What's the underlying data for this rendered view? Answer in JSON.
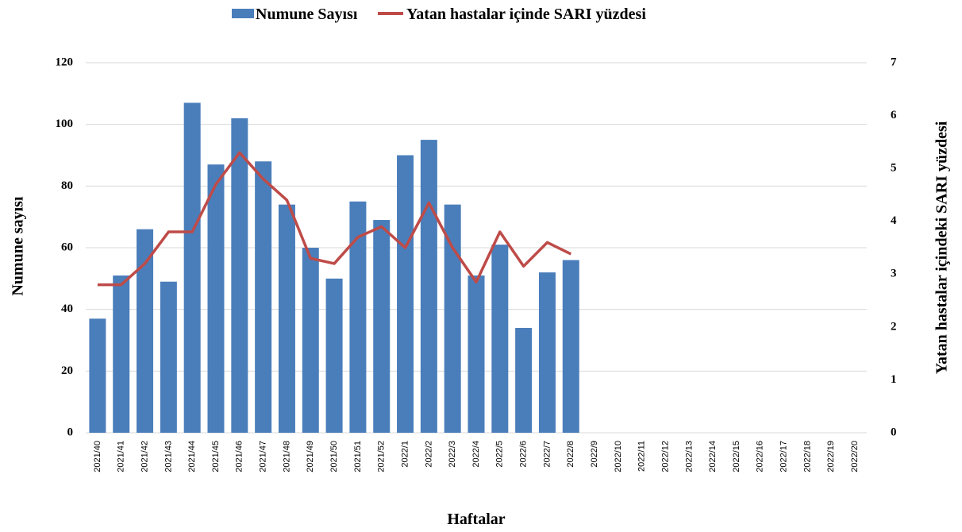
{
  "chart_data": {
    "type": "bar_line",
    "categories": [
      "2021/40",
      "2021/41",
      "2021/42",
      "2021/43",
      "2021/44",
      "2021/45",
      "2021/46",
      "2021/47",
      "2021/48",
      "2021/49",
      "2021/50",
      "2021/51",
      "2021/52",
      "2022/1",
      "2022/2",
      "2022/3",
      "2022/4",
      "2022/5",
      "2022/6",
      "2022/7",
      "2022/8",
      "2022/9",
      "2022/10",
      "2022/11",
      "2022/12",
      "2022/13",
      "2022/14",
      "2022/15",
      "2022/16",
      "2022/17",
      "2022/18",
      "2022/19",
      "2022/20"
    ],
    "series": [
      {
        "name": "Numune Sayısı",
        "color": "#4a7ebb",
        "type": "bar",
        "values": [
          37,
          51,
          66,
          49,
          107,
          87,
          102,
          88,
          74,
          60,
          50,
          75,
          69,
          90,
          95,
          74,
          51,
          61,
          34,
          52,
          56,
          null,
          null,
          null,
          null,
          null,
          null,
          null,
          null,
          null,
          null,
          null,
          null
        ]
      },
      {
        "name": "Yatan hastalar içinde SARI yüzdesi",
        "color": "#be4b48",
        "type": "line",
        "axis": "y2",
        "values": [
          2.8,
          2.8,
          3.2,
          3.8,
          3.8,
          4.7,
          5.3,
          4.8,
          4.4,
          3.3,
          3.2,
          3.7,
          3.9,
          3.5,
          4.35,
          3.5,
          2.85,
          3.8,
          3.15,
          3.6,
          3.38,
          null,
          null,
          null,
          null,
          null,
          null,
          null,
          null,
          null,
          null,
          null,
          null
        ]
      }
    ],
    "x_label": "Haftalar",
    "y_label": "Numune sayısı",
    "y2_label": "Yatan hastalar içindeki SARI yüzdesi",
    "ylim": [
      0,
      120
    ],
    "yticks": [
      0,
      20,
      40,
      60,
      80,
      100,
      120
    ],
    "y2lim": [
      0,
      7
    ],
    "y2ticks": [
      0,
      1,
      2,
      3,
      4,
      5,
      6,
      7
    ],
    "grid": true
  }
}
